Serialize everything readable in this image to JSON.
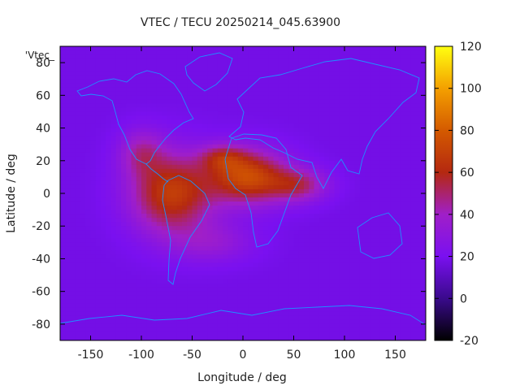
{
  "chart_data": {
    "type": "heatmap",
    "title": "VTEC / TECU 20250214_045.63900",
    "xlabel": "Longitude / deg",
    "ylabel": "Latitude / deg",
    "key_label": "'Vtec_",
    "xlim": [
      -180,
      180
    ],
    "ylim": [
      -90,
      90
    ],
    "xticks": [
      -150,
      -100,
      -50,
      0,
      50,
      100,
      150
    ],
    "yticks": [
      -80,
      -60,
      -40,
      -20,
      0,
      20,
      40,
      60,
      80
    ],
    "colorbar": {
      "min": -20,
      "max": 120,
      "ticks": [
        -20,
        0,
        20,
        40,
        60,
        80,
        100,
        120
      ]
    },
    "background_value": 18,
    "anomalies": [
      {
        "lon": -70,
        "lat": 0,
        "amp": 50,
        "sx": 40,
        "sy": 24
      },
      {
        "lon": 5,
        "lat": 10,
        "amp": 55,
        "sx": 38,
        "sy": 16
      },
      {
        "lon": -20,
        "lat": 22,
        "amp": 25,
        "sx": 22,
        "sy": 8
      },
      {
        "lon": 55,
        "lat": 5,
        "amp": 30,
        "sx": 28,
        "sy": 10
      },
      {
        "lon": -100,
        "lat": 25,
        "amp": 22,
        "sx": 22,
        "sy": 14
      },
      {
        "lon": -30,
        "lat": -30,
        "amp": 15,
        "sx": 40,
        "sy": 12
      }
    ]
  }
}
